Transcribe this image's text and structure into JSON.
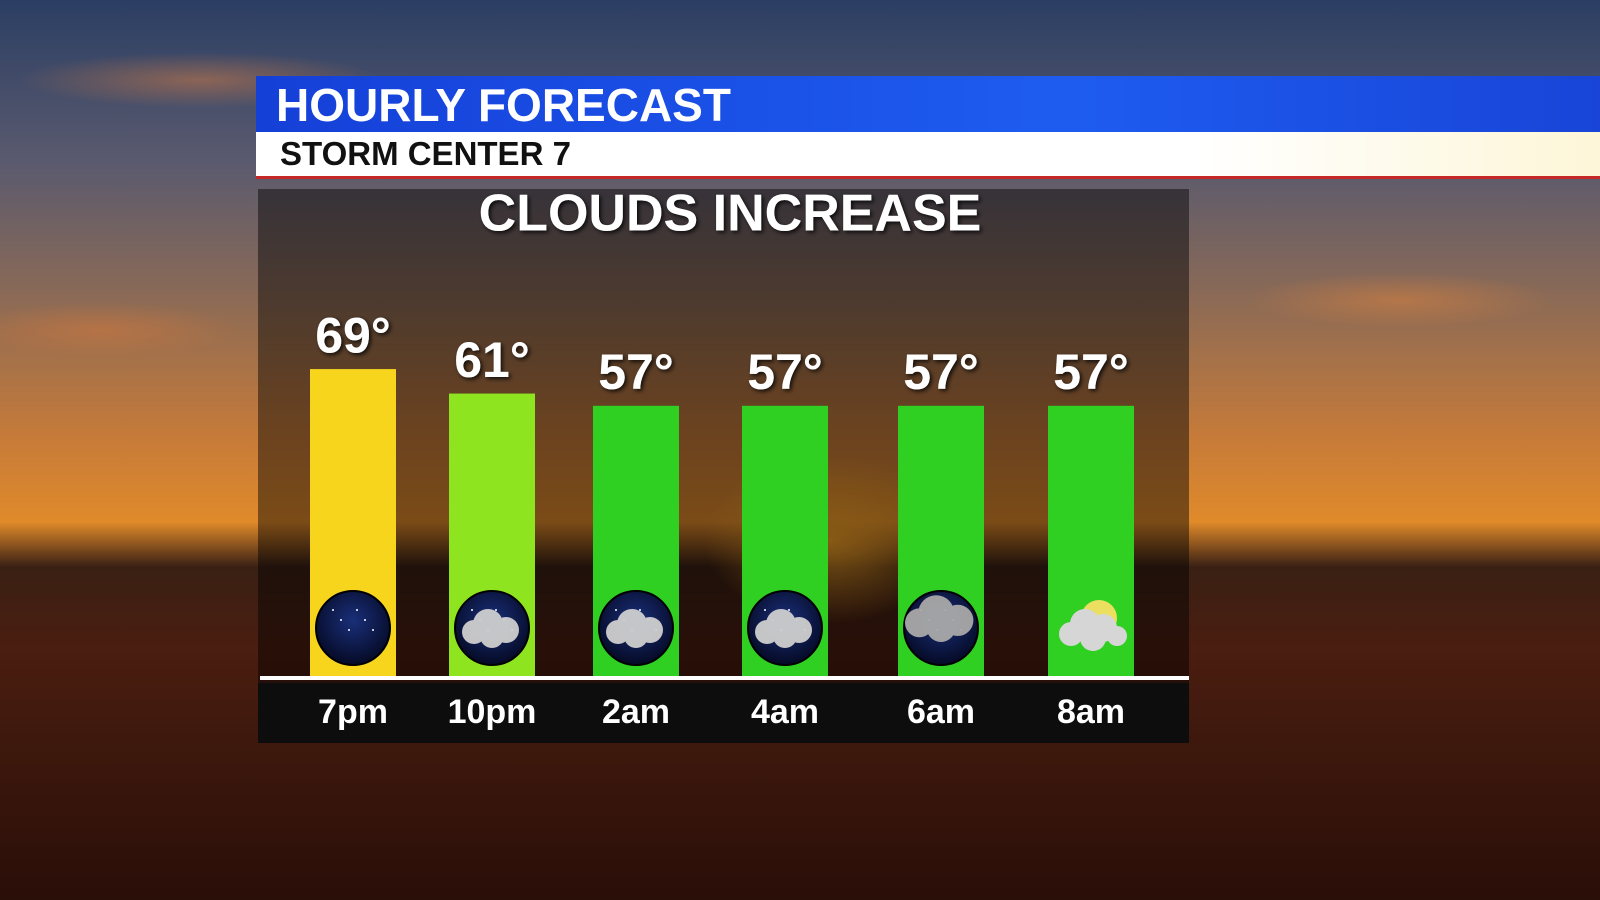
{
  "header": {
    "title": "HOURLY FORECAST",
    "subtitle": "STORM CENTER 7"
  },
  "chart_data": {
    "type": "bar",
    "title": "CLOUDS INCREASE",
    "categories": [
      "7pm",
      "10pm",
      "2am",
      "4am",
      "6am",
      "8am"
    ],
    "values": [
      69,
      61,
      57,
      57,
      57,
      57
    ],
    "value_labels": [
      "69°",
      "61°",
      "57°",
      "57°",
      "57°",
      "57°"
    ],
    "colors": [
      "#f7d51d",
      "#8ee41f",
      "#2fd021",
      "#2fd021",
      "#2fd021",
      "#2fd021"
    ]
  }
}
